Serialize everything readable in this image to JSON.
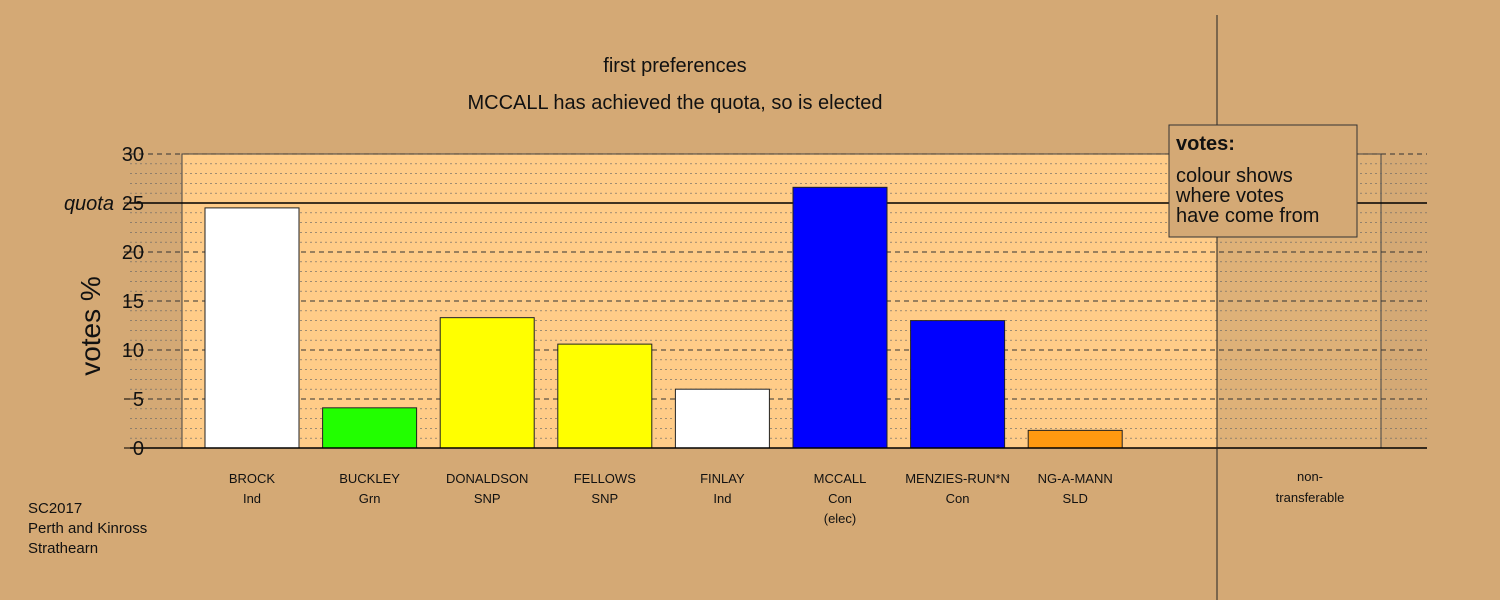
{
  "chart_data": {
    "type": "bar",
    "title": "first preferences",
    "subtitle": "MCCALL has achieved the quota, so is elected",
    "ylabel": "votes %",
    "ylim": [
      0,
      30
    ],
    "yticks": [
      "0",
      "5",
      "10",
      "15",
      "20",
      "25",
      "30"
    ],
    "quota": 25,
    "quota_label": "quota",
    "grid": true,
    "categories": [
      {
        "name": "BROCK",
        "party": "Ind",
        "note": "",
        "value": 24.5,
        "color": "#ffffff"
      },
      {
        "name": "BUCKLEY",
        "party": "Grn",
        "note": "",
        "value": 4.1,
        "color": "#22ff00"
      },
      {
        "name": "DONALDSON",
        "party": "SNP",
        "note": "",
        "value": 13.3,
        "color": "#ffff00"
      },
      {
        "name": "FELLOWS",
        "party": "SNP",
        "note": "",
        "value": 10.6,
        "color": "#ffff00"
      },
      {
        "name": "FINLAY",
        "party": "Ind",
        "note": "",
        "value": 6.0,
        "color": "#ffffff"
      },
      {
        "name": "MCCALL",
        "party": "Con",
        "note": "(elec)",
        "value": 26.6,
        "color": "#0000ff"
      },
      {
        "name": "MENZIES-RUN*N",
        "party": "Con",
        "note": "",
        "value": 13.0,
        "color": "#0000ff"
      },
      {
        "name": "NG-A-MANN",
        "party": "SLD",
        "note": "",
        "value": 1.8,
        "color": "#ff9910"
      }
    ],
    "non_transferable": {
      "line1": "non-",
      "line2": "transferable",
      "value": 0
    },
    "legend": {
      "title": "votes:",
      "lines": [
        "colour shows",
        "where votes",
        "have come from"
      ],
      "placement": "top-right"
    },
    "footer": [
      "SC2017",
      "Perth and Kinross",
      "Strathearn"
    ]
  },
  "colors": {
    "background": "#d4a975",
    "plot_area": "#ffcc88",
    "nontransferable_area": "#c29a6c",
    "legend_box": "#d4a975"
  }
}
